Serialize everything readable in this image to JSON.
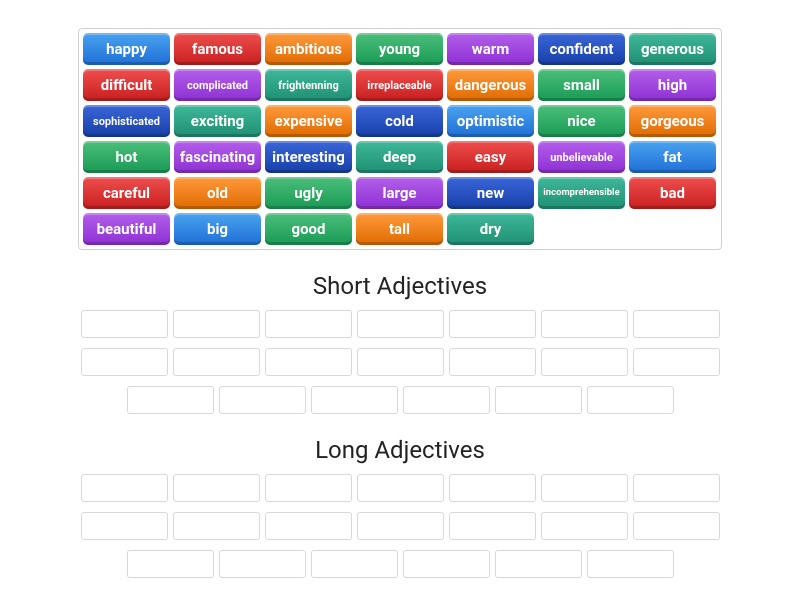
{
  "colors": {
    "blue": {
      "top": "#4aa3f0",
      "bottom": "#1e6fd6"
    },
    "red": {
      "top": "#ef4e4e",
      "bottom": "#c81e1e"
    },
    "orange": {
      "top": "#ff9a3c",
      "bottom": "#e06a00"
    },
    "green": {
      "top": "#4bbf7a",
      "bottom": "#199a55"
    },
    "purple": {
      "top": "#b35feb",
      "bottom": "#8e2fd4"
    },
    "navy": {
      "top": "#3a66d9",
      "bottom": "#173fa8"
    },
    "teal": {
      "top": "#3fb89a",
      "bottom": "#1f8f72"
    }
  },
  "tiles": [
    {
      "label": "happy",
      "color": "blue"
    },
    {
      "label": "famous",
      "color": "red"
    },
    {
      "label": "ambitious",
      "color": "orange"
    },
    {
      "label": "young",
      "color": "green"
    },
    {
      "label": "warm",
      "color": "purple"
    },
    {
      "label": "confident",
      "color": "navy"
    },
    {
      "label": "generous",
      "color": "teal"
    },
    {
      "label": "difficult",
      "color": "red"
    },
    {
      "label": "complicated",
      "color": "purple",
      "size": "small"
    },
    {
      "label": "frightenning",
      "color": "teal",
      "size": "small"
    },
    {
      "label": "irreplaceable",
      "color": "red",
      "size": "small"
    },
    {
      "label": "dangerous",
      "color": "orange"
    },
    {
      "label": "small",
      "color": "green"
    },
    {
      "label": "high",
      "color": "purple"
    },
    {
      "label": "sophisticated",
      "color": "navy",
      "size": "small"
    },
    {
      "label": "exciting",
      "color": "teal"
    },
    {
      "label": "expensive",
      "color": "orange"
    },
    {
      "label": "cold",
      "color": "navy"
    },
    {
      "label": "optimistic",
      "color": "blue"
    },
    {
      "label": "nice",
      "color": "green"
    },
    {
      "label": "gorgeous",
      "color": "orange"
    },
    {
      "label": "hot",
      "color": "green"
    },
    {
      "label": "fascinating",
      "color": "purple"
    },
    {
      "label": "interesting",
      "color": "navy"
    },
    {
      "label": "deep",
      "color": "teal"
    },
    {
      "label": "easy",
      "color": "red"
    },
    {
      "label": "unbelievable",
      "color": "purple",
      "size": "small"
    },
    {
      "label": "fat",
      "color": "blue"
    },
    {
      "label": "careful",
      "color": "red"
    },
    {
      "label": "old",
      "color": "orange"
    },
    {
      "label": "ugly",
      "color": "green"
    },
    {
      "label": "large",
      "color": "purple"
    },
    {
      "label": "new",
      "color": "navy"
    },
    {
      "label": "incomprehensible",
      "color": "teal",
      "size": "tiny"
    },
    {
      "label": "bad",
      "color": "red"
    },
    {
      "label": "beautiful",
      "color": "purple"
    },
    {
      "label": "big",
      "color": "blue"
    },
    {
      "label": "good",
      "color": "green"
    },
    {
      "label": "tall",
      "color": "orange"
    },
    {
      "label": "dry",
      "color": "teal"
    }
  ],
  "sections": [
    {
      "title": "Short Adjectives",
      "rows": [
        7,
        7,
        6
      ]
    },
    {
      "title": "Long Adjectives",
      "rows": [
        7,
        7,
        6
      ]
    }
  ]
}
